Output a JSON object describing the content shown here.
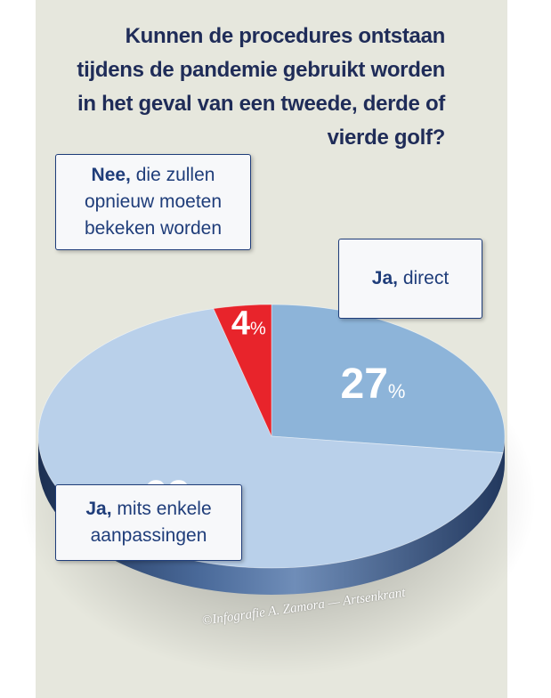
{
  "title_lines": [
    "Kunnen de procedures ontstaan",
    "tijdens de pandemie gebruikt worden",
    "in het geval van een tweede, derde of",
    "vierde golf?"
  ],
  "chart_data": {
    "type": "pie",
    "title": "Kunnen de procedures ontstaan tijdens de pandemie gebruikt worden in het geval van een tweede, derde of vierde golf?",
    "slices": [
      {
        "label_bold": "Ja,",
        "label_rest": "direct",
        "value": 27,
        "value_text": "27",
        "unit": "%",
        "color": "#8db4d9"
      },
      {
        "label_bold": "Ja,",
        "label_rest": "mits enkele aanpassingen",
        "value": 69,
        "value_text": "69",
        "unit": "%",
        "color": "#b9d0ea"
      },
      {
        "label_bold": "Nee,",
        "label_rest": "die zullen opnieuw moeten bekeken worden",
        "value": 4,
        "value_text": "4",
        "unit": "%",
        "color": "#e8242b"
      }
    ]
  },
  "labels": {
    "direct": {
      "bold": "Ja,",
      "rest": " direct"
    },
    "mits_line1_bold": "Ja,",
    "mits_line1_rest": " mits enkele",
    "mits_line2": "aanpassingen",
    "nee_line1_bold": "Nee,",
    "nee_line1_rest": " die zullen",
    "nee_line2": "opnieuw moeten",
    "nee_line3": "bekeken worden"
  },
  "credit": "©Infografie A. Zamora — Artsenkrant"
}
